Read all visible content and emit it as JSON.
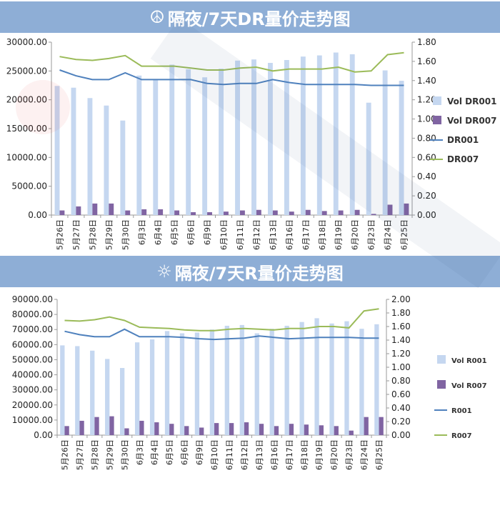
{
  "charts": [
    {
      "banner_glyph": "☮",
      "title": "隔夜/7天DR量价走势图",
      "chart_data": {
        "type": "bar+line",
        "categories": [
          "5月26日",
          "5月27日",
          "5月28日",
          "5月29日",
          "5月30日",
          "6月3日",
          "6月4日",
          "6月5日",
          "6月6日",
          "6月9日",
          "6月10日",
          "6月11日",
          "6月12日",
          "6月13日",
          "6月16日",
          "6月17日",
          "6月18日",
          "6月19日",
          "6月20日",
          "6月23日",
          "6月24日",
          "6月25日"
        ],
        "left_axis": {
          "min": 0,
          "max": 30000,
          "step": 5000,
          "ticks": [
            "0.00",
            "5000.00",
            "10000.00",
            "15000.00",
            "20000.00",
            "25000.00",
            "30000.00"
          ]
        },
        "right_axis": {
          "min": 0,
          "max": 1.8,
          "step": 0.2,
          "ticks": [
            "0.00",
            "0.20",
            "0.40",
            "0.60",
            "0.80",
            "1.00",
            "1.20",
            "1.40",
            "1.60",
            "1.80"
          ]
        },
        "series": [
          {
            "name": "Vol DR001",
            "kind": "bar",
            "axis": "left",
            "color": "#c5d7f0",
            "values": [
              22400,
              22100,
              20300,
              19000,
              16400,
              24200,
              23500,
              26100,
              25300,
              23900,
              25400,
              26800,
              27000,
              26400,
              26900,
              27500,
              27700,
              28200,
              27900,
              19500,
              25100,
              23300
            ]
          },
          {
            "name": "Vol DR007",
            "kind": "bar",
            "axis": "left",
            "color": "#8064a2",
            "values": [
              800,
              1500,
              2000,
              2000,
              800,
              1000,
              1000,
              800,
              500,
              500,
              600,
              800,
              900,
              800,
              600,
              900,
              700,
              800,
              900,
              200,
              1800,
              2000
            ]
          },
          {
            "name": "DR001",
            "kind": "line",
            "axis": "right",
            "color": "#4f81bd",
            "values": [
              1.51,
              1.45,
              1.41,
              1.41,
              1.48,
              1.41,
              1.41,
              1.41,
              1.41,
              1.37,
              1.36,
              1.37,
              1.37,
              1.41,
              1.38,
              1.36,
              1.36,
              1.36,
              1.36,
              1.35,
              1.35,
              1.35
            ]
          },
          {
            "name": "DR007",
            "kind": "line",
            "axis": "right",
            "color": "#9bbb59",
            "values": [
              1.65,
              1.62,
              1.61,
              1.63,
              1.66,
              1.55,
              1.55,
              1.55,
              1.53,
              1.51,
              1.51,
              1.53,
              1.54,
              1.5,
              1.52,
              1.52,
              1.52,
              1.54,
              1.49,
              1.5,
              1.67,
              1.69
            ]
          }
        ]
      }
    },
    {
      "banner_glyph": "☼",
      "title": "隔夜/7天R量价走势图",
      "chart_data": {
        "type": "bar+line",
        "categories": [
          "5月26日",
          "5月27日",
          "5月28日",
          "5月29日",
          "5月30日",
          "6月3日",
          "6月4日",
          "6月5日",
          "6月6日",
          "6月9日",
          "6月10日",
          "6月11日",
          "6月12日",
          "6月13日",
          "6月16日",
          "6月17日",
          "6月18日",
          "6月19日",
          "6月20日",
          "6月23日",
          "6月24日",
          "6月25日"
        ],
        "left_axis": {
          "min": 0,
          "max": 90000,
          "step": 10000,
          "ticks": [
            "0.00",
            "10000.00",
            "20000.00",
            "30000.00",
            "40000.00",
            "50000.00",
            "60000.00",
            "70000.00",
            "80000.00",
            "90000.00"
          ]
        },
        "right_axis": {
          "min": 0,
          "max": 2.0,
          "step": 0.2,
          "ticks": [
            "0.00",
            "0.20",
            "0.40",
            "0.60",
            "0.80",
            "1.00",
            "1.20",
            "1.40",
            "1.60",
            "1.80",
            "2.00"
          ]
        },
        "series": [
          {
            "name": "Vol R001",
            "kind": "bar",
            "axis": "left",
            "color": "#c5d7f0",
            "values": [
              59500,
              59000,
              56000,
              50500,
              44500,
              61500,
              63500,
              69000,
              67500,
              68000,
              70000,
              72500,
              73000,
              67500,
              70500,
              72500,
              75000,
              77500,
              74000,
              75500,
              70500,
              73500
            ]
          },
          {
            "name": "Vol R007",
            "kind": "bar",
            "axis": "left",
            "color": "#8064a2",
            "values": [
              6000,
              9500,
              12000,
              12500,
              4500,
              9500,
              8500,
              7500,
              6000,
              5000,
              8000,
              8000,
              8500,
              7500,
              6000,
              7500,
              7000,
              6500,
              6000,
              3000,
              12000,
              12000
            ]
          },
          {
            "name": "R001",
            "kind": "line",
            "axis": "right",
            "color": "#4f81bd",
            "values": [
              1.53,
              1.48,
              1.45,
              1.45,
              1.56,
              1.45,
              1.45,
              1.45,
              1.44,
              1.42,
              1.41,
              1.42,
              1.43,
              1.46,
              1.44,
              1.42,
              1.43,
              1.44,
              1.44,
              1.44,
              1.43,
              1.43
            ]
          },
          {
            "name": "R007",
            "kind": "line",
            "axis": "right",
            "color": "#9bbb59",
            "values": [
              1.69,
              1.68,
              1.7,
              1.74,
              1.69,
              1.59,
              1.58,
              1.57,
              1.55,
              1.54,
              1.54,
              1.56,
              1.57,
              1.56,
              1.55,
              1.57,
              1.57,
              1.6,
              1.6,
              1.58,
              1.83,
              1.86
            ]
          }
        ]
      }
    }
  ]
}
